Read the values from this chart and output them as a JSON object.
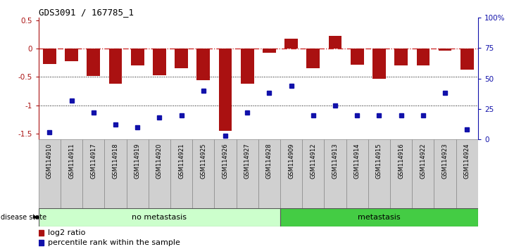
{
  "title": "GDS3091 / 167785_1",
  "samples": [
    "GSM114910",
    "GSM114911",
    "GSM114917",
    "GSM114918",
    "GSM114919",
    "GSM114920",
    "GSM114921",
    "GSM114925",
    "GSM114926",
    "GSM114927",
    "GSM114928",
    "GSM114909",
    "GSM114912",
    "GSM114913",
    "GSM114914",
    "GSM114915",
    "GSM114916",
    "GSM114922",
    "GSM114923",
    "GSM114924"
  ],
  "log2_ratio": [
    -0.27,
    -0.22,
    -0.48,
    -0.62,
    -0.3,
    -0.47,
    -0.35,
    -0.55,
    -1.45,
    -0.62,
    -0.07,
    0.18,
    -0.35,
    0.22,
    -0.28,
    -0.53,
    -0.3,
    -0.29,
    -0.04,
    -0.37
  ],
  "percentile_rank": [
    6,
    32,
    22,
    12,
    10,
    18,
    20,
    40,
    3,
    22,
    38,
    44,
    20,
    28,
    20,
    20,
    20,
    20,
    38,
    8
  ],
  "no_metastasis_count": 11,
  "metastasis_count": 9,
  "ylim_left": [
    -1.6,
    0.55
  ],
  "ylim_right": [
    0,
    100
  ],
  "bar_color": "#aa1111",
  "dot_color": "#1111aa",
  "zero_line_color": "#cc2222",
  "grid_line_color": "#000000",
  "no_meta_color": "#ccffcc",
  "meta_color": "#44cc44",
  "label_area_color": "#d0d0d0",
  "background_color": "#ffffff"
}
